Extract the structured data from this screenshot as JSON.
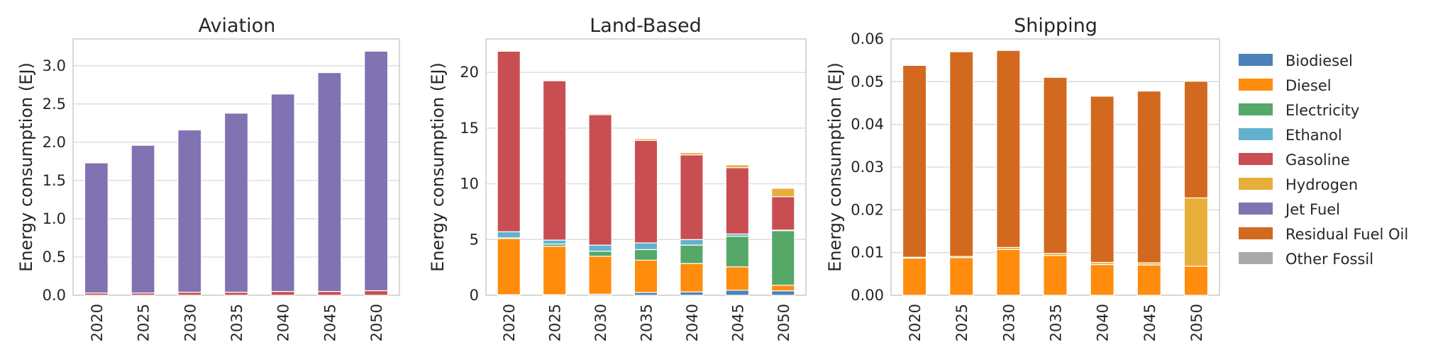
{
  "legend": {
    "items": [
      {
        "name": "Biodiesel",
        "color": "#4a81b6"
      },
      {
        "name": "Diesel",
        "color": "#ff8c0d"
      },
      {
        "name": "Electricity",
        "color": "#55a867"
      },
      {
        "name": "Ethanol",
        "color": "#62b2cf"
      },
      {
        "name": "Gasoline",
        "color": "#c84e52"
      },
      {
        "name": "Hydrogen",
        "color": "#e8ae3a"
      },
      {
        "name": "Jet Fuel",
        "color": "#8172b2"
      },
      {
        "name": "Residual Fuel Oil",
        "color": "#d2691e"
      },
      {
        "name": "Other Fossil",
        "color": "#aaaaaa"
      }
    ]
  },
  "chart_data": [
    {
      "type": "bar",
      "stacked": true,
      "title": "Aviation",
      "ylabel": "Energy consumption (EJ)",
      "ylim": [
        0,
        3.35
      ],
      "yticks": [
        "0.0",
        "0.5",
        "1.0",
        "1.5",
        "2.0",
        "2.5",
        "3.0"
      ],
      "grid": true,
      "categories": [
        "2020",
        "2025",
        "2030",
        "2035",
        "2040",
        "2045",
        "2050"
      ],
      "series": [
        {
          "name": "Gasoline",
          "values": [
            0.03,
            0.03,
            0.04,
            0.04,
            0.05,
            0.05,
            0.06
          ]
        },
        {
          "name": "Jet Fuel",
          "values": [
            1.7,
            1.93,
            2.12,
            2.34,
            2.58,
            2.86,
            3.13
          ]
        }
      ]
    },
    {
      "type": "bar",
      "stacked": true,
      "title": "Land-Based",
      "ylabel": "Energy consumption (EJ)",
      "ylim": [
        0,
        23
      ],
      "yticks": [
        "0",
        "5",
        "10",
        "15",
        "20"
      ],
      "grid": true,
      "categories": [
        "2020",
        "2025",
        "2030",
        "2035",
        "2040",
        "2045",
        "2050"
      ],
      "series": [
        {
          "name": "Biodiesel",
          "values": [
            0.05,
            0.05,
            0.1,
            0.25,
            0.3,
            0.45,
            0.4
          ]
        },
        {
          "name": "Diesel",
          "values": [
            5.05,
            4.35,
            3.4,
            2.9,
            2.55,
            2.1,
            0.5
          ]
        },
        {
          "name": "Electricity",
          "values": [
            0.05,
            0.2,
            0.45,
            0.95,
            1.65,
            2.75,
            4.9
          ]
        },
        {
          "name": "Ethanol",
          "values": [
            0.55,
            0.35,
            0.55,
            0.6,
            0.5,
            0.2,
            0.05
          ]
        },
        {
          "name": "Gasoline",
          "values": [
            16.2,
            14.3,
            11.7,
            9.2,
            7.6,
            5.95,
            3.0
          ]
        },
        {
          "name": "Hydrogen",
          "values": [
            0.05,
            0.05,
            0.1,
            0.15,
            0.2,
            0.25,
            0.75
          ]
        },
        {
          "name": "Other Fossil",
          "values": [
            0,
            0,
            0,
            0,
            0,
            0,
            0
          ]
        }
      ]
    },
    {
      "type": "bar",
      "stacked": true,
      "title": "Shipping",
      "ylabel": "Energy consumption (EJ)",
      "ylim": [
        0,
        0.06
      ],
      "yticks": [
        "0.00",
        "0.01",
        "0.02",
        "0.03",
        "0.04",
        "0.05",
        "0.06"
      ],
      "grid": true,
      "categories": [
        "2020",
        "2025",
        "2030",
        "2035",
        "2040",
        "2045",
        "2050"
      ],
      "series": [
        {
          "name": "Diesel",
          "values": [
            0.0087,
            0.0088,
            0.0107,
            0.0093,
            0.0072,
            0.0071,
            0.0068
          ]
        },
        {
          "name": "Hydrogen",
          "values": [
            0.0002,
            0.0003,
            0.0005,
            0.0005,
            0.0005,
            0.0005,
            0.016
          ]
        },
        {
          "name": "Residual Fuel Oil",
          "values": [
            0.0449,
            0.0479,
            0.0461,
            0.0412,
            0.0389,
            0.0402,
            0.0273
          ]
        }
      ]
    }
  ]
}
